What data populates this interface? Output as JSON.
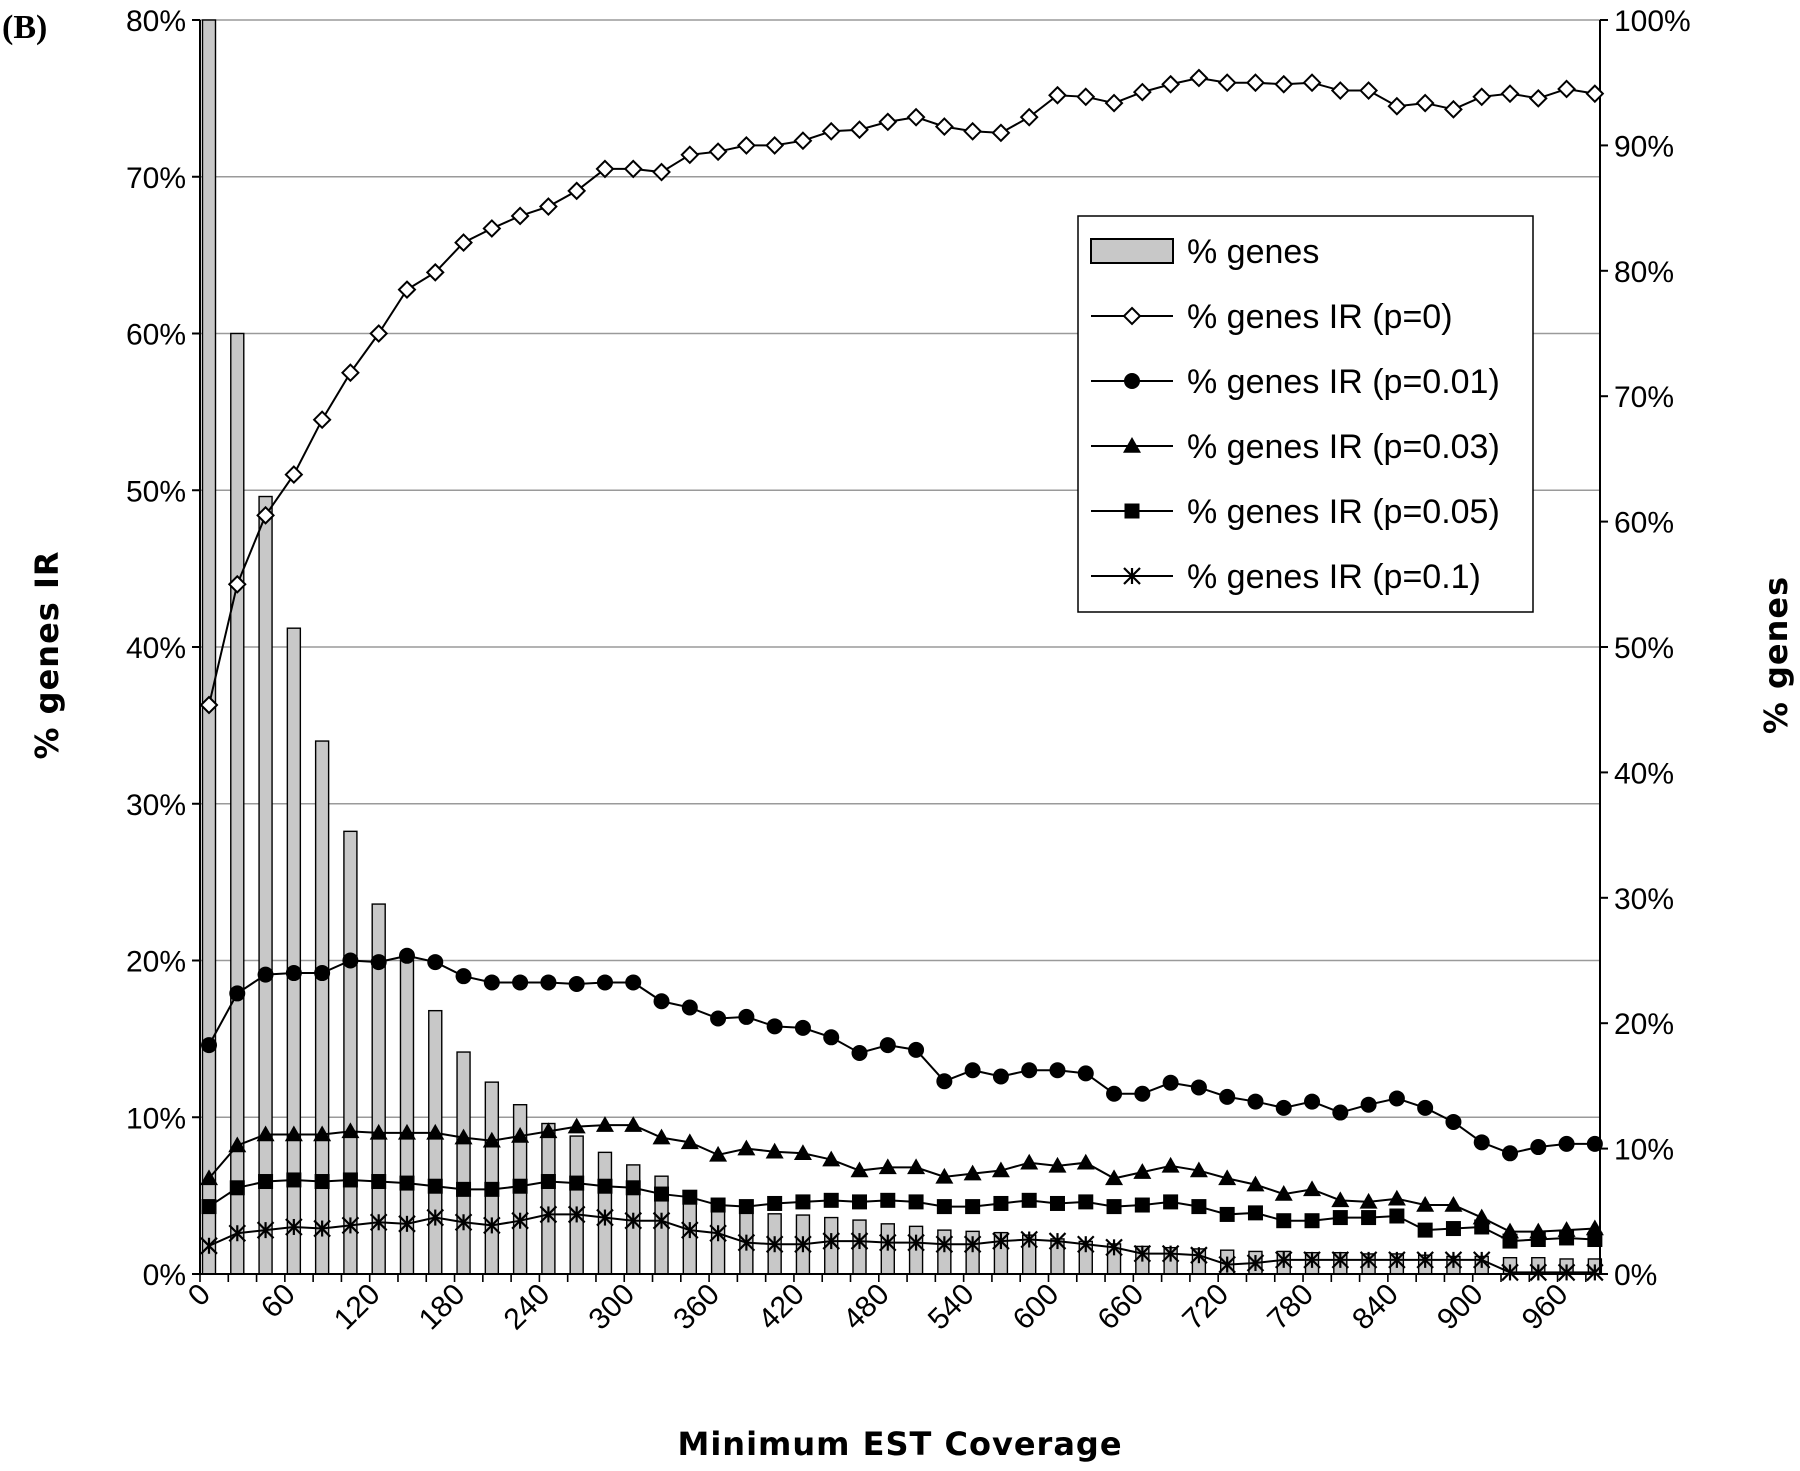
{
  "chart_data": {
    "type": "bar+line",
    "panel_label": "(B)",
    "xlabel": "Minimum EST Coverage",
    "ylabel_left": "% genes IR",
    "ylabel_right": "% genes",
    "xlim": [
      0,
      990
    ],
    "xtick_labels": [
      "0",
      "60",
      "120",
      "180",
      "240",
      "300",
      "360",
      "420",
      "480",
      "540",
      "600",
      "660",
      "720",
      "780",
      "840",
      "900",
      "960"
    ],
    "ylim_left": [
      0,
      80
    ],
    "ytick_labels_left": [
      "0%",
      "10%",
      "20%",
      "30%",
      "40%",
      "50%",
      "60%",
      "70%",
      "80%"
    ],
    "ylim_right": [
      0,
      100
    ],
    "ytick_labels_right": [
      "0%",
      "10%",
      "20%",
      "30%",
      "40%",
      "50%",
      "60%",
      "70%",
      "80%",
      "90%",
      "100%"
    ],
    "grid": "horizontal",
    "legend_position": "upper-right",
    "x": [
      0,
      20,
      40,
      60,
      80,
      100,
      120,
      140,
      160,
      180,
      200,
      220,
      240,
      260,
      280,
      300,
      320,
      340,
      360,
      380,
      400,
      420,
      440,
      460,
      480,
      500,
      520,
      540,
      560,
      580,
      600,
      620,
      640,
      660,
      680,
      700,
      720,
      740,
      760,
      780,
      800,
      820,
      840,
      860,
      880,
      900,
      920,
      940,
      960,
      980
    ],
    "bars": {
      "name": "% genes",
      "axis": "right",
      "values": [
        100,
        75,
        62,
        51.5,
        42.5,
        35.3,
        29.5,
        25,
        21,
        17.7,
        15.3,
        13.5,
        12,
        11,
        9.7,
        8.7,
        7.8,
        6.5,
        5.8,
        5.2,
        4.8,
        4.7,
        4.5,
        4.3,
        4,
        3.8,
        3.5,
        3.4,
        3.3,
        3.1,
        2.8,
        2.6,
        2.4,
        2.2,
        2.1,
        2,
        1.9,
        1.8,
        1.8,
        1.7,
        1.7,
        1.6,
        1.6,
        1.5,
        1.4,
        1.4,
        1.3,
        1.3,
        1.2,
        1.2
      ]
    },
    "series": [
      {
        "name": "% genes IR (p=0)",
        "marker": "diamond-open",
        "axis": "left",
        "values": [
          36.3,
          44,
          48.4,
          51,
          54.5,
          57.5,
          60,
          62.8,
          63.9,
          65.8,
          66.7,
          67.5,
          68.1,
          69.1,
          70.5,
          70.5,
          70.3,
          71.4,
          71.6,
          72,
          72,
          72.3,
          72.9,
          73,
          73.5,
          73.8,
          73.2,
          72.9,
          72.8,
          73.8,
          75.2,
          75.1,
          74.7,
          75.4,
          75.9,
          76.3,
          76,
          76,
          75.9,
          76,
          75.5,
          75.5,
          74.5,
          74.7,
          74.3,
          75.1,
          75.3,
          75,
          75.6,
          75.3
        ]
      },
      {
        "name": "% genes IR (p=0.01)",
        "marker": "circle-filled",
        "axis": "left",
        "values": [
          14.6,
          17.9,
          19.1,
          19.2,
          19.2,
          20,
          19.9,
          20.3,
          19.9,
          19,
          18.6,
          18.6,
          18.6,
          18.5,
          18.6,
          18.6,
          17.4,
          17,
          16.3,
          16.4,
          15.8,
          15.7,
          15.1,
          14.1,
          14.6,
          14.3,
          12.3,
          13,
          12.6,
          13,
          13,
          12.8,
          11.5,
          11.5,
          12.2,
          11.9,
          11.3,
          11,
          10.6,
          11,
          10.3,
          10.8,
          11.2,
          10.6,
          9.7,
          8.4,
          7.7,
          8.1,
          8.3,
          8.3
        ]
      },
      {
        "name": "% genes IR (p=0.03)",
        "marker": "triangle-filled",
        "axis": "left",
        "values": [
          6.1,
          8.2,
          8.9,
          8.9,
          8.9,
          9.1,
          9,
          9,
          9,
          8.7,
          8.5,
          8.8,
          9.1,
          9.4,
          9.5,
          9.5,
          8.7,
          8.4,
          7.6,
          8,
          7.8,
          7.7,
          7.3,
          6.6,
          6.8,
          6.8,
          6.2,
          6.4,
          6.6,
          7.1,
          6.9,
          7.1,
          6.1,
          6.5,
          6.9,
          6.6,
          6.1,
          5.7,
          5.1,
          5.4,
          4.7,
          4.6,
          4.8,
          4.4,
          4.4,
          3.6,
          2.7,
          2.7,
          2.8,
          2.9
        ]
      },
      {
        "name": "% genes IR (p=0.05)",
        "marker": "square-filled",
        "axis": "left",
        "values": [
          4.3,
          5.5,
          5.9,
          6,
          5.9,
          6,
          5.9,
          5.8,
          5.6,
          5.4,
          5.4,
          5.6,
          5.9,
          5.8,
          5.6,
          5.5,
          5.1,
          4.9,
          4.4,
          4.3,
          4.5,
          4.6,
          4.7,
          4.6,
          4.7,
          4.6,
          4.3,
          4.3,
          4.5,
          4.7,
          4.5,
          4.6,
          4.3,
          4.4,
          4.6,
          4.3,
          3.8,
          3.9,
          3.4,
          3.4,
          3.6,
          3.6,
          3.7,
          2.8,
          2.9,
          3,
          2.1,
          2.2,
          2.3,
          2.2
        ]
      },
      {
        "name": "% genes IR (p=0.1)",
        "marker": "asterisk",
        "axis": "left",
        "values": [
          1.8,
          2.6,
          2.8,
          3,
          2.9,
          3.1,
          3.3,
          3.2,
          3.6,
          3.3,
          3.1,
          3.4,
          3.8,
          3.8,
          3.6,
          3.4,
          3.4,
          2.8,
          2.6,
          2,
          1.9,
          1.9,
          2.1,
          2.1,
          2,
          2,
          1.9,
          1.9,
          2.1,
          2.2,
          2.1,
          1.9,
          1.7,
          1.3,
          1.3,
          1.2,
          0.6,
          0.7,
          0.9,
          0.9,
          0.9,
          0.9,
          0.9,
          0.9,
          0.9,
          0.9,
          0.1,
          0.1,
          0.1,
          0.1
        ]
      }
    ]
  }
}
